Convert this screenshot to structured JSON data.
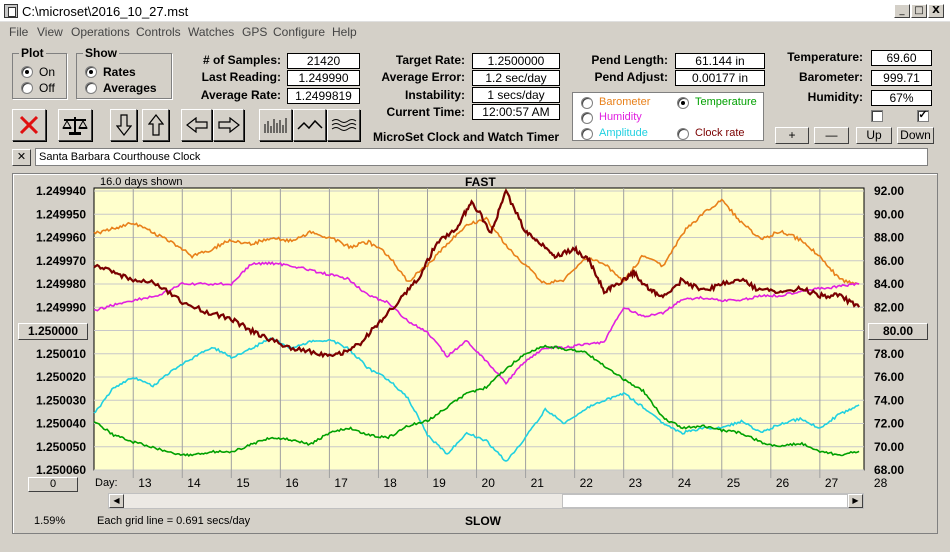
{
  "window": {
    "title": "C:\\microset\\2016_10_27.mst",
    "min": "_",
    "max": "□",
    "close": "X"
  },
  "menu": [
    "File",
    "View",
    "Operations",
    "Controls",
    "Watches",
    "GPS",
    "Configure",
    "Help"
  ],
  "plot": {
    "title": "Plot",
    "on": "On",
    "off": "Off"
  },
  "show": {
    "title": "Show",
    "rates": "Rates",
    "averages": "Averages"
  },
  "stats": {
    "samples_label": "# of Samples:",
    "samples": "21420",
    "last_label": "Last Reading:",
    "last": "1.249990",
    "avg_label": "Average Rate:",
    "avg": "1.2499819",
    "target_label": "Target Rate:",
    "target": "1.2500000",
    "avgerr_label": "Average Error:",
    "avgerr": "1.2 sec/day",
    "instab_label": "Instability:",
    "instab": "1 secs/day",
    "time_label": "Current Time:",
    "time": "12:00:57 AM",
    "pendlen_label": "Pend Length:",
    "pendlen": "61.144 in",
    "pendadj_label": "Pend Adjust:",
    "pendadj": "0.00177 in",
    "temp_label": "Temperature:",
    "temp": "69.60",
    "baro_label": "Barometer:",
    "baro": "999.71",
    "hum_label": "Humidity:",
    "hum": "67%"
  },
  "subtitle": "MicroSet Clock and Watch Timer",
  "options": {
    "barometer": "Barometer",
    "temperature": "Temperature",
    "humidity": "Humidity",
    "amplitude": "Amplitude",
    "clockrate": "Clock rate"
  },
  "colors": {
    "barometer": "#e8801a",
    "temperature": "#00a000",
    "humidity": "#e020e0",
    "amplitude": "#20d0e0",
    "clockrate": "#7a0000"
  },
  "buttons": {
    "plus": "+",
    "minus": "—",
    "up": "Up",
    "down": "Down",
    "clear": "✕"
  },
  "clock_name": "Santa Barbara Courthouse Clock",
  "chart": {
    "days_shown": "16.0 days shown",
    "fast": "FAST",
    "slow": "SLOW",
    "grid_note": "Each grid line = 0.691 secs/day",
    "percent": "1.59%",
    "day_label": "Day:",
    "left_center": "1.250000",
    "right_center": "80.00",
    "bottom_left": "0",
    "left_ticks": [
      "1.249940",
      "1.249950",
      "1.249960",
      "1.249970",
      "1.249980",
      "1.249990",
      "1.250000",
      "1.250010",
      "1.250020",
      "1.250030",
      "1.250040",
      "1.250050",
      "1.250060"
    ],
    "right_ticks": [
      "92.00",
      "90.00",
      "88.00",
      "86.00",
      "84.00",
      "82.00",
      "80.00",
      "78.00",
      "76.00",
      "74.00",
      "72.00",
      "70.00",
      "68.00"
    ],
    "day_ticks": [
      "13",
      "14",
      "15",
      "16",
      "17",
      "18",
      "19",
      "20",
      "21",
      "22",
      "23",
      "24",
      "25",
      "26",
      "27",
      "28"
    ]
  },
  "chart_data": {
    "type": "line",
    "xlabel": "Day:",
    "xlim": [
      12.2,
      27.9
    ],
    "y_left_lim": [
      1.25006,
      1.24994
    ],
    "y_right_lim": [
      68,
      92
    ],
    "series": [
      {
        "name": "Clock rate",
        "axis": "left",
        "x": [
          12.2,
          12.6,
          13.0,
          13.5,
          14.0,
          14.5,
          15.0,
          15.4,
          15.8,
          16.3,
          16.8,
          17.2,
          17.6,
          18.0,
          18.4,
          18.8,
          19.2,
          19.6,
          19.9,
          20.3,
          20.6,
          21.0,
          21.3,
          21.6,
          22.0,
          22.3,
          22.6,
          22.9,
          23.2,
          23.5,
          23.8,
          24.2,
          24.6,
          25.0,
          25.4,
          25.8,
          26.2,
          26.6,
          27.0,
          27.4,
          27.8
        ],
        "y": [
          1.249972,
          1.249975,
          1.249978,
          1.24998,
          1.249988,
          1.249992,
          1.249995,
          1.25,
          1.250004,
          1.250008,
          1.25001,
          1.25001,
          1.250006,
          1.249997,
          1.249988,
          1.249978,
          1.249962,
          1.249956,
          1.249944,
          1.249958,
          1.24994,
          1.249958,
          1.249962,
          1.249968,
          1.249965,
          1.24997,
          1.249983,
          1.24998,
          1.249975,
          1.249982,
          1.249986,
          1.249978,
          1.249983,
          1.24998,
          1.249978,
          1.249983,
          1.249983,
          1.249982,
          1.249985,
          1.249985,
          1.24999
        ]
      },
      {
        "name": "Barometer",
        "axis": "right",
        "x": [
          12.2,
          12.6,
          13.0,
          13.4,
          13.8,
          14.2,
          14.6,
          15.0,
          15.4,
          15.8,
          16.2,
          16.6,
          17.0,
          17.4,
          17.8,
          18.2,
          18.6,
          19.0,
          19.4,
          19.8,
          20.2,
          20.6,
          21.0,
          21.4,
          21.8,
          22.2,
          22.6,
          23.0,
          23.4,
          23.8,
          24.2,
          24.6,
          25.0,
          25.4,
          25.8,
          26.2,
          26.6,
          27.0,
          27.4,
          27.8
        ],
        "y": [
          88.3,
          88.8,
          89.3,
          88.4,
          87.6,
          86.4,
          87.0,
          87.8,
          87.4,
          88.0,
          87.7,
          88.4,
          88.0,
          87.2,
          87.6,
          86.5,
          84.2,
          85.6,
          87.5,
          89.1,
          89.6,
          87.3,
          85.6,
          84.0,
          84.4,
          86.2,
          85.8,
          84.2,
          86.5,
          85.5,
          88.4,
          90.0,
          91.2,
          89.3,
          87.8,
          88.6,
          87.8,
          86.4,
          84.4,
          84.0
        ]
      },
      {
        "name": "Humidity",
        "axis": "right",
        "x": [
          12.2,
          12.6,
          13.0,
          13.5,
          14.0,
          14.5,
          15.0,
          15.4,
          15.8,
          16.2,
          16.6,
          17.0,
          17.4,
          17.8,
          18.2,
          18.6,
          19.0,
          19.4,
          19.8,
          20.2,
          20.6,
          21.0,
          21.4,
          21.8,
          22.2,
          22.6,
          23.0,
          23.4,
          23.8,
          24.2,
          24.6,
          25.0,
          25.4,
          25.8,
          26.2,
          26.6,
          27.0,
          27.4,
          27.8
        ],
        "y": [
          81.7,
          82.2,
          82.6,
          83.0,
          84.0,
          84.0,
          84.0,
          85.7,
          85.8,
          85.6,
          85.2,
          84.8,
          84.4,
          83.0,
          82.4,
          80.8,
          79.8,
          77.8,
          79.1,
          77.4,
          75.5,
          77.4,
          78.5,
          78.5,
          78.8,
          79.0,
          82.0,
          81.2,
          81.5,
          82.7,
          82.8,
          82.6,
          82.6,
          83.0,
          83.0,
          83.4,
          83.6,
          83.8,
          84.0
        ]
      },
      {
        "name": "Amplitude",
        "axis": "right",
        "x": [
          12.2,
          12.6,
          13.0,
          13.4,
          13.8,
          14.2,
          14.6,
          15.0,
          15.4,
          15.8,
          16.2,
          16.6,
          17.0,
          17.4,
          17.8,
          18.2,
          18.6,
          19.0,
          19.4,
          19.8,
          20.2,
          20.6,
          21.0,
          21.4,
          21.8,
          22.2,
          22.6,
          23.0,
          23.4,
          23.8,
          24.2,
          24.6,
          25.0,
          25.4,
          25.8,
          26.2,
          26.6,
          27.0,
          27.4,
          27.8
        ],
        "y": [
          72.8,
          75.1,
          76.0,
          75.2,
          76.6,
          77.6,
          78.6,
          77.7,
          78.4,
          79.4,
          78.5,
          79.0,
          79.2,
          78.4,
          76.7,
          75.8,
          74.2,
          71.0,
          69.4,
          71.2,
          70.5,
          68.7,
          70.8,
          73.2,
          72.0,
          73.2,
          74.0,
          74.6,
          73.4,
          72.0,
          71.2,
          71.6,
          71.6,
          72.2,
          71.2,
          72.0,
          72.4,
          71.6,
          72.8,
          73.6
        ]
      },
      {
        "name": "Temperature",
        "axis": "right",
        "x": [
          12.2,
          12.6,
          13.0,
          13.4,
          13.8,
          14.2,
          14.6,
          15.0,
          15.4,
          15.8,
          16.2,
          16.6,
          17.0,
          17.4,
          17.8,
          18.2,
          18.6,
          19.0,
          19.4,
          19.8,
          20.2,
          20.6,
          21.0,
          21.4,
          21.8,
          22.2,
          22.6,
          23.0,
          23.4,
          23.8,
          24.2,
          24.6,
          25.0,
          25.4,
          25.8,
          26.2,
          26.6,
          27.0,
          27.4,
          27.8
        ],
        "y": [
          72.2,
          71.0,
          70.4,
          70.0,
          69.4,
          69.3,
          69.6,
          69.5,
          70.2,
          70.8,
          70.6,
          70.2,
          71.2,
          71.6,
          71.0,
          70.8,
          71.8,
          72.2,
          73.4,
          74.6,
          75.1,
          76.7,
          78.0,
          78.7,
          78.4,
          78.2,
          77.0,
          75.8,
          74.8,
          72.5,
          71.6,
          71.8,
          71.4,
          71.2,
          70.4,
          70.0,
          70.3,
          69.6,
          69.3,
          69.6
        ]
      }
    ]
  }
}
